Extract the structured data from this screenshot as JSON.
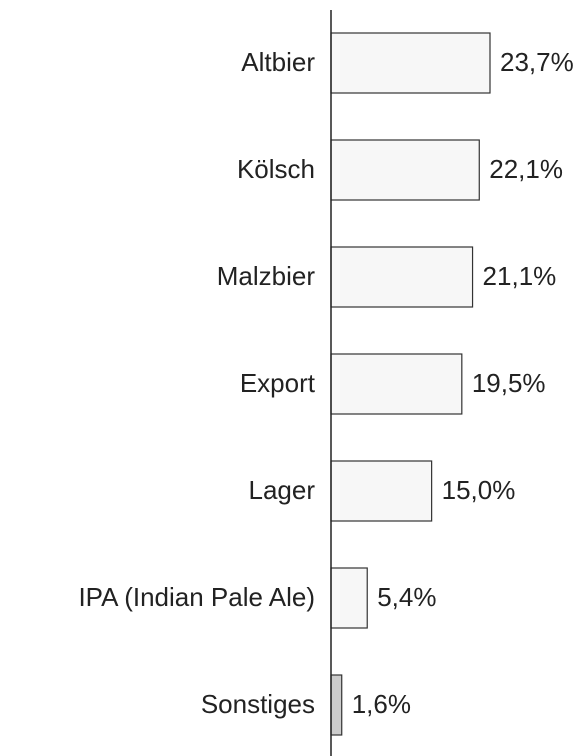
{
  "chart_data": {
    "type": "bar",
    "orientation": "horizontal",
    "categories": [
      "Altbier",
      "Kölsch",
      "Malzbier",
      "Export",
      "Lager",
      "IPA (Indian Pale Ale)",
      "Sonstiges"
    ],
    "values": [
      23.7,
      22.1,
      21.1,
      19.5,
      15.0,
      5.4,
      1.6
    ],
    "value_labels": [
      "23,7%",
      "22,1%",
      "21,1%",
      "19,5%",
      "15,0%",
      "5,4%",
      "1,6%"
    ],
    "colors": [
      "#f7f7f7",
      "#f7f7f7",
      "#f7f7f7",
      "#f7f7f7",
      "#f7f7f7",
      "#f7f7f7",
      "#cccccc"
    ]
  }
}
